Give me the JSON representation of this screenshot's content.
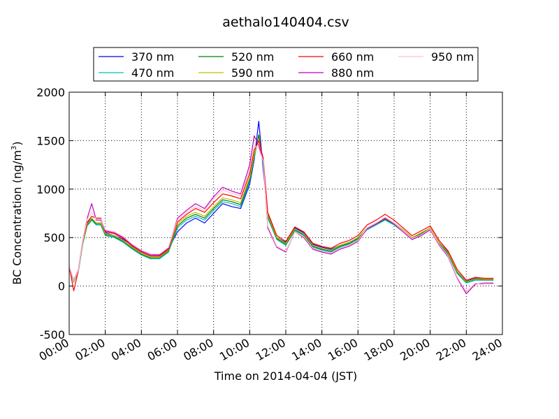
{
  "chart_data": {
    "type": "line",
    "title": "aethalo140404.csv",
    "xlabel": "Time on 2014-04-04 (JST)",
    "ylabel": "BC Concentration (ng/m³)",
    "ylabel_main": "BC Concentration (ng/m",
    "ylabel_sup": "3",
    "ylabel_tail": ")",
    "xlim": [
      "00:00",
      "24:00"
    ],
    "ylim": [
      -500,
      2000
    ],
    "y_ticks": [
      -500,
      0,
      500,
      1000,
      1500,
      2000
    ],
    "x_ticks": [
      "00:00",
      "02:00",
      "04:00",
      "06:00",
      "08:00",
      "10:00",
      "12:00",
      "14:00",
      "16:00",
      "18:00",
      "20:00",
      "22:00",
      "24:00"
    ],
    "grid": true,
    "legend_position": "top-center",
    "x": [
      "00:00",
      "00:15",
      "00:30",
      "00:45",
      "01:00",
      "01:15",
      "01:30",
      "01:45",
      "02:00",
      "02:30",
      "03:00",
      "03:30",
      "04:00",
      "04:30",
      "05:00",
      "05:30",
      "06:00",
      "06:30",
      "07:00",
      "07:30",
      "08:00",
      "08:30",
      "09:00",
      "09:30",
      "10:00",
      "10:15",
      "10:30",
      "10:45",
      "11:00",
      "11:30",
      "12:00",
      "12:30",
      "13:00",
      "13:30",
      "14:00",
      "14:30",
      "15:00",
      "15:30",
      "16:00",
      "16:30",
      "17:00",
      "17:30",
      "18:00",
      "18:30",
      "19:00",
      "19:30",
      "20:00",
      "20:30",
      "21:00",
      "21:30",
      "22:00",
      "22:30",
      "23:00",
      "23:30"
    ],
    "series": [
      {
        "name": "370 nm",
        "color": "#0000ff",
        "values": [
          200,
          50,
          150,
          450,
          650,
          700,
          650,
          650,
          550,
          520,
          480,
          420,
          370,
          330,
          320,
          380,
          560,
          650,
          700,
          650,
          750,
          850,
          820,
          800,
          1050,
          1300,
          1700,
          1200,
          750,
          500,
          450,
          600,
          550,
          430,
          400,
          380,
          420,
          450,
          500,
          600,
          650,
          700,
          650,
          580,
          500,
          550,
          600,
          450,
          350,
          150,
          50,
          80,
          70,
          70
        ]
      },
      {
        "name": "470 nm",
        "color": "#00bfbf",
        "values": [
          180,
          40,
          140,
          430,
          620,
          680,
          630,
          630,
          520,
          500,
          450,
          380,
          320,
          280,
          280,
          350,
          600,
          680,
          720,
          680,
          780,
          870,
          850,
          820,
          1080,
          1320,
          1550,
          1250,
          700,
          480,
          420,
          570,
          520,
          400,
          370,
          350,
          400,
          430,
          480,
          580,
          630,
          680,
          630,
          560,
          480,
          530,
          580,
          430,
          320,
          130,
          30,
          60,
          60,
          60
        ]
      },
      {
        "name": "520 nm",
        "color": "#008000",
        "values": [
          190,
          45,
          145,
          440,
          630,
          690,
          640,
          640,
          530,
          510,
          460,
          390,
          330,
          290,
          290,
          360,
          620,
          700,
          740,
          700,
          800,
          890,
          870,
          840,
          1100,
          1340,
          1560,
          1270,
          720,
          490,
          430,
          580,
          530,
          410,
          380,
          360,
          410,
          440,
          490,
          590,
          640,
          690,
          640,
          570,
          490,
          540,
          590,
          440,
          330,
          140,
          40,
          70,
          65,
          65
        ]
      },
      {
        "name": "590 nm",
        "color": "#bfbf00",
        "values": [
          195,
          48,
          148,
          445,
          640,
          700,
          650,
          650,
          540,
          520,
          470,
          400,
          340,
          300,
          300,
          370,
          640,
          720,
          760,
          720,
          820,
          910,
          890,
          860,
          1120,
          1360,
          1520,
          1290,
          730,
          500,
          440,
          590,
          540,
          420,
          390,
          370,
          420,
          450,
          500,
          600,
          650,
          700,
          650,
          580,
          500,
          550,
          600,
          450,
          340,
          150,
          45,
          75,
          70,
          70
        ]
      },
      {
        "name": "660 nm",
        "color": "#ff0000",
        "values": [
          210,
          -50,
          150,
          460,
          660,
          720,
          700,
          700,
          560,
          540,
          490,
          410,
          350,
          310,
          310,
          380,
          660,
          740,
          800,
          760,
          860,
          950,
          930,
          900,
          1160,
          1400,
          1500,
          1320,
          760,
          520,
          460,
          610,
          560,
          440,
          410,
          390,
          440,
          470,
          520,
          630,
          680,
          740,
          680,
          600,
          520,
          570,
          620,
          470,
          360,
          170,
          60,
          90,
          80,
          80
        ]
      },
      {
        "name": "880 nm",
        "color": "#bf00bf",
        "values": [
          200,
          60,
          160,
          470,
          700,
          850,
          680,
          680,
          570,
          550,
          500,
          420,
          360,
          320,
          320,
          390,
          700,
          780,
          850,
          800,
          920,
          1020,
          980,
          950,
          1250,
          1550,
          1450,
          1300,
          600,
          400,
          350,
          560,
          500,
          380,
          350,
          330,
          380,
          410,
          460,
          590,
          640,
          700,
          640,
          560,
          480,
          520,
          580,
          420,
          300,
          80,
          -80,
          20,
          30,
          30
        ]
      },
      {
        "name": "950 nm",
        "color": "#ffc0cb",
        "values": [
          205,
          55,
          155,
          465,
          690,
          760,
          690,
          690,
          580,
          560,
          510,
          430,
          370,
          330,
          330,
          400,
          680,
          760,
          820,
          780,
          900,
          990,
          960,
          930,
          1200,
          1450,
          1420,
          1290,
          620,
          410,
          360,
          560,
          510,
          390,
          360,
          340,
          390,
          420,
          470,
          600,
          650,
          710,
          650,
          570,
          490,
          530,
          590,
          430,
          310,
          90,
          -60,
          30,
          10,
          20
        ]
      }
    ]
  }
}
